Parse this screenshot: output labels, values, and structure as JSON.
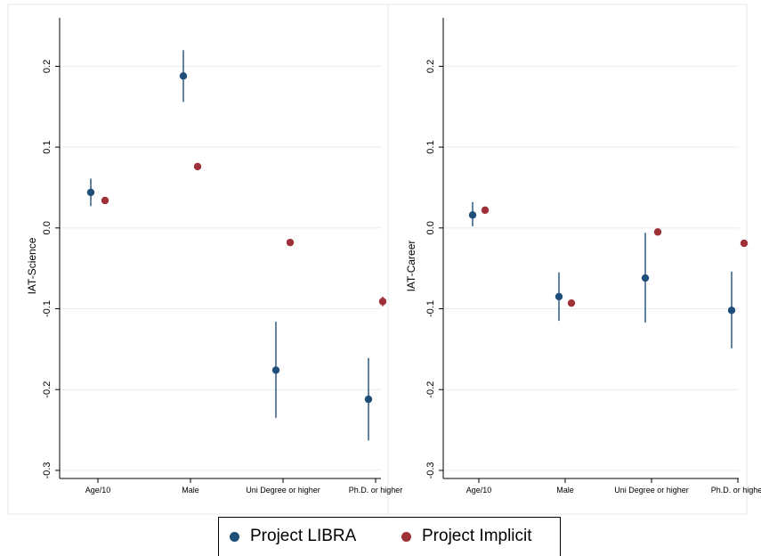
{
  "chart_data": [
    {
      "type": "scatter",
      "subtype": "coefficient-plot",
      "ylabel": "IAT-Science",
      "categories": [
        "Age/10",
        "Male",
        "Uni Degree or higher",
        "Ph.D. or higher"
      ],
      "ylim": [
        -0.3,
        0.2
      ],
      "yticks": [
        0.2,
        0.1,
        0.0,
        -0.1,
        -0.2,
        -0.3
      ],
      "ytick_labels": [
        "0.2",
        "0.1",
        "0.0",
        "-0.1",
        "-0.2",
        "-0.3"
      ],
      "grid": true,
      "series": [
        {
          "name": "Project LIBRA",
          "color": "#1f4e79",
          "values": [
            0.044,
            0.188,
            -0.176,
            -0.212
          ],
          "ci_low": [
            0.027,
            0.156,
            -0.235,
            -0.263
          ],
          "ci_high": [
            0.061,
            0.22,
            -0.116,
            -0.161
          ]
        },
        {
          "name": "Project Implicit",
          "color": "#9e3037",
          "values": [
            0.034,
            0.076,
            -0.018,
            -0.091
          ],
          "ci_low": [
            0.032,
            0.074,
            -0.02,
            -0.097
          ],
          "ci_high": [
            0.036,
            0.078,
            -0.016,
            -0.085
          ]
        }
      ]
    },
    {
      "type": "scatter",
      "subtype": "coefficient-plot",
      "ylabel": "IAT-Career",
      "categories": [
        "Age/10",
        "Male",
        "Uni Degree or higher",
        "Ph.D. or higher"
      ],
      "ylim": [
        -0.3,
        0.2
      ],
      "yticks": [
        0.2,
        0.1,
        0.0,
        -0.1,
        -0.2,
        -0.3
      ],
      "ytick_labels": [
        "0.2",
        "0.1",
        "0.0",
        "-0.1",
        "-0.2",
        "-0.3"
      ],
      "grid": true,
      "series": [
        {
          "name": "Project LIBRA",
          "color": "#1f4e79",
          "values": [
            0.016,
            -0.085,
            -0.062,
            -0.102
          ],
          "ci_low": [
            0.002,
            -0.115,
            -0.117,
            -0.149
          ],
          "ci_high": [
            0.032,
            -0.055,
            -0.006,
            -0.054
          ]
        },
        {
          "name": "Project Implicit",
          "color": "#9e3037",
          "values": [
            0.022,
            -0.093,
            -0.005,
            -0.019
          ],
          "ci_low": [
            0.021,
            -0.095,
            -0.006,
            -0.02
          ],
          "ci_high": [
            0.023,
            -0.091,
            -0.004,
            -0.018
          ]
        }
      ]
    }
  ],
  "legend": {
    "position": "bottom-center",
    "items": [
      {
        "label": "Project LIBRA",
        "color": "#1f4e79"
      },
      {
        "label": "Project Implicit",
        "color": "#9e3037"
      }
    ]
  }
}
